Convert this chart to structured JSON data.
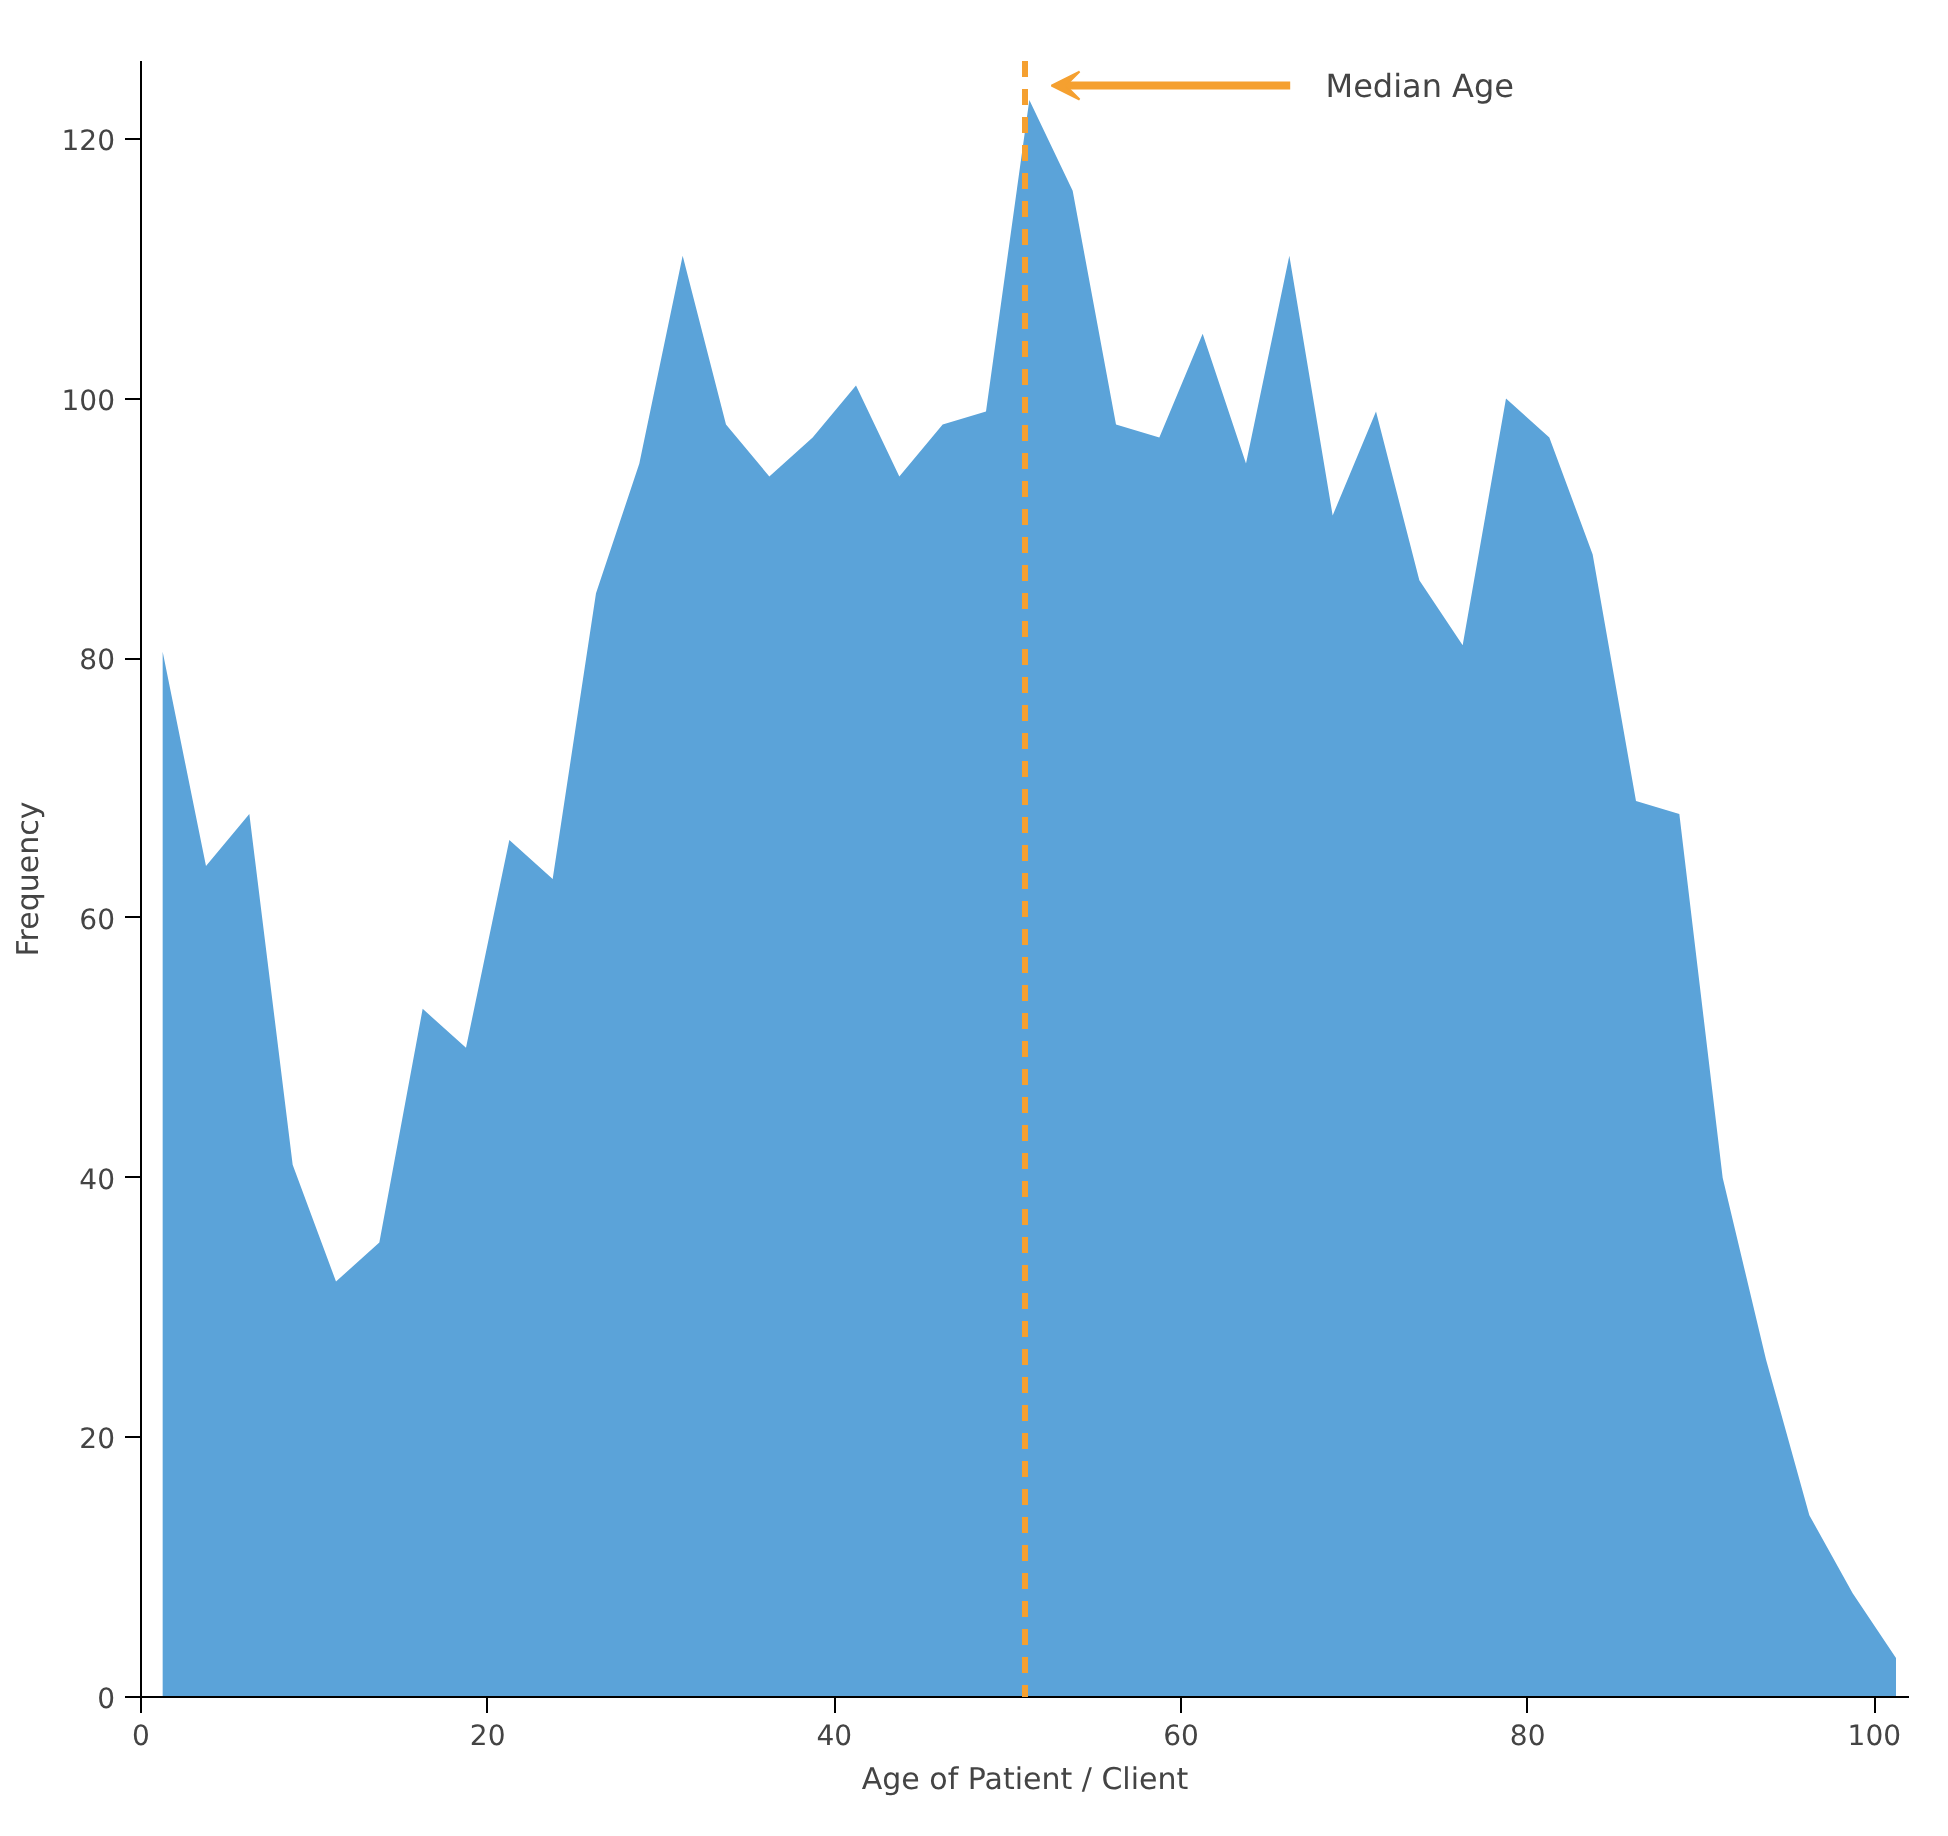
{
  "chart_data": {
    "type": "area",
    "xlabel": "Age of Patient / Client",
    "ylabel": "Frequency",
    "x": [
      1.25,
      3.75,
      6.25,
      8.75,
      11.25,
      13.75,
      16.25,
      18.75,
      21.25,
      23.75,
      26.25,
      28.75,
      31.25,
      33.75,
      36.25,
      38.75,
      41.25,
      43.75,
      46.25,
      48.75,
      51.25,
      53.75,
      56.25,
      58.75,
      61.25,
      63.75,
      66.25,
      68.75,
      71.25,
      73.75,
      76.25,
      78.75,
      81.25,
      83.75,
      86.25,
      88.75,
      91.25,
      93.75,
      96.25,
      98.75,
      101.25
    ],
    "values": [
      80.5,
      64,
      68,
      41,
      32,
      35,
      53,
      50,
      66,
      63,
      85,
      95,
      111,
      98,
      94,
      97,
      101,
      94,
      98,
      99,
      123,
      116,
      98,
      97,
      105,
      95,
      111,
      91,
      99,
      86,
      81,
      100,
      97,
      88,
      69,
      68,
      40,
      26,
      14,
      8,
      3
    ],
    "color": "#5ba3d9",
    "xlim": [
      0,
      102
    ],
    "ylim": [
      0,
      126
    ],
    "xticks": [
      0,
      20,
      40,
      60,
      80,
      100
    ],
    "yticks": [
      0,
      20,
      40,
      60,
      80,
      100,
      120
    ],
    "grid": false,
    "ref_lines": [
      {
        "axis": "x",
        "value": 51,
        "color": "#f5a030",
        "line_style": "dashed"
      }
    ],
    "annotations": [
      "Median Age"
    ]
  }
}
